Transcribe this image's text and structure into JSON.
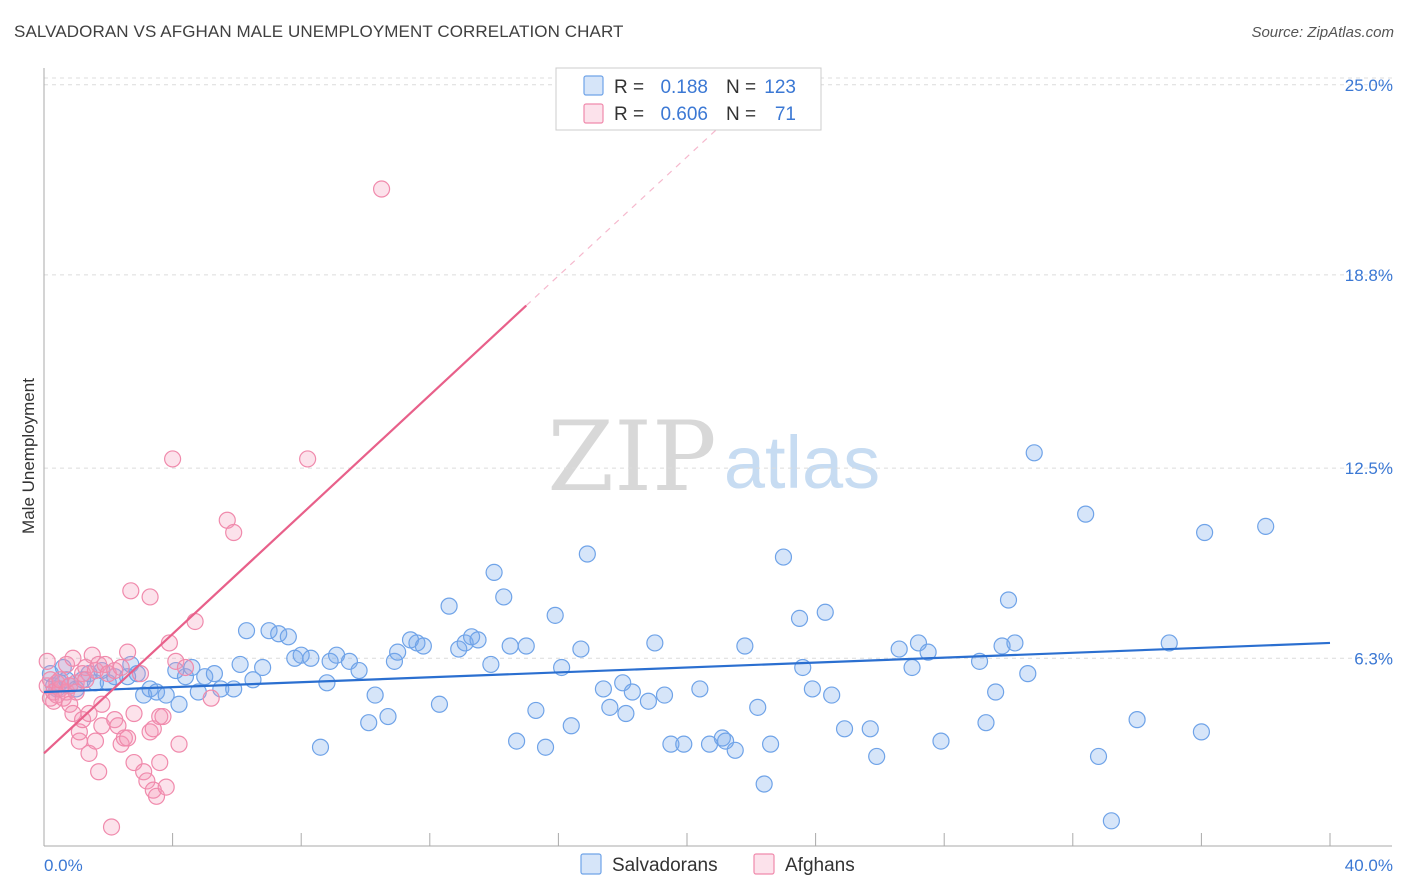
{
  "title": "SALVADORAN VS AFGHAN MALE UNEMPLOYMENT CORRELATION CHART",
  "source": "Source: ZipAtlas.com",
  "watermark": {
    "zip": "ZIP",
    "atlas": "atlas"
  },
  "colors": {
    "blue": "#6fa3e8",
    "blue_fill": "rgba(120,170,235,0.30)",
    "blue_line": "#2b6fd0",
    "pink": "#f08aac",
    "pink_fill": "rgba(244,150,182,0.28)",
    "pink_line": "#e8608a",
    "tick_text": "#3b78d4",
    "grid": "#dcdcdc"
  },
  "legend_top": {
    "rows": [
      {
        "r_label": "R =",
        "r_value": "0.188",
        "n_label": "N =",
        "n_value": "123",
        "series": "blue"
      },
      {
        "r_label": "R =",
        "r_value": "0.606",
        "n_label": "N =",
        "n_value": "71",
        "series": "pink"
      }
    ]
  },
  "chart_data": {
    "type": "scatter",
    "title": "SALVADORAN VS AFGHAN MALE UNEMPLOYMENT CORRELATION CHART",
    "xlabel": "",
    "ylabel": "Male Unemployment",
    "xlim": [
      0,
      40
    ],
    "ylim": [
      0,
      26
    ],
    "x_tick_labels": [
      "0.0%",
      "40.0%"
    ],
    "y_ticks": [
      6.3,
      12.5,
      18.8,
      25.0
    ],
    "y_tick_labels": [
      "6.3%",
      "12.5%",
      "18.8%",
      "25.0%"
    ],
    "grid": true,
    "legend": [
      "Salvadorans",
      "Afghans"
    ],
    "series": [
      {
        "name": "Salvadorans",
        "color": "blue",
        "regression": {
          "x": [
            0,
            40
          ],
          "y": [
            5.2,
            6.8
          ]
        },
        "points": [
          [
            0.2,
            5.8
          ],
          [
            0.3,
            5.4
          ],
          [
            0.4,
            5.3
          ],
          [
            0.5,
            5.5
          ],
          [
            0.6,
            6.0
          ],
          [
            0.7,
            5.6
          ],
          [
            0.8,
            5.4
          ],
          [
            1.0,
            5.3
          ],
          [
            1.2,
            5.6
          ],
          [
            1.4,
            5.8
          ],
          [
            1.6,
            5.5
          ],
          [
            1.8,
            5.9
          ],
          [
            2.0,
            5.5
          ],
          [
            2.2,
            5.7
          ],
          [
            2.6,
            5.7
          ],
          [
            2.7,
            6.1
          ],
          [
            2.9,
            5.8
          ],
          [
            3.1,
            5.1
          ],
          [
            3.3,
            5.3
          ],
          [
            3.5,
            5.2
          ],
          [
            3.8,
            5.1
          ],
          [
            4.1,
            5.9
          ],
          [
            4.2,
            4.8
          ],
          [
            4.4,
            5.7
          ],
          [
            4.6,
            6.0
          ],
          [
            4.8,
            5.2
          ],
          [
            5.0,
            5.7
          ],
          [
            5.3,
            5.8
          ],
          [
            5.5,
            5.3
          ],
          [
            5.9,
            5.3
          ],
          [
            6.1,
            6.1
          ],
          [
            6.3,
            7.2
          ],
          [
            6.5,
            5.6
          ],
          [
            6.8,
            6.0
          ],
          [
            7.0,
            7.2
          ],
          [
            7.3,
            7.1
          ],
          [
            7.6,
            7.0
          ],
          [
            7.8,
            6.3
          ],
          [
            8.0,
            6.4
          ],
          [
            8.3,
            6.3
          ],
          [
            8.6,
            3.4
          ],
          [
            8.8,
            5.5
          ],
          [
            8.9,
            6.2
          ],
          [
            9.1,
            6.4
          ],
          [
            9.5,
            6.2
          ],
          [
            9.8,
            5.9
          ],
          [
            10.1,
            4.2
          ],
          [
            10.3,
            5.1
          ],
          [
            10.7,
            4.4
          ],
          [
            10.9,
            6.2
          ],
          [
            11.0,
            6.5
          ],
          [
            11.4,
            6.9
          ],
          [
            11.6,
            6.8
          ],
          [
            11.8,
            6.7
          ],
          [
            12.3,
            4.8
          ],
          [
            12.6,
            8.0
          ],
          [
            12.9,
            6.6
          ],
          [
            13.1,
            6.8
          ],
          [
            13.3,
            7.0
          ],
          [
            13.5,
            6.9
          ],
          [
            13.9,
            6.1
          ],
          [
            14.0,
            9.1
          ],
          [
            14.3,
            8.3
          ],
          [
            14.5,
            6.7
          ],
          [
            14.7,
            3.6
          ],
          [
            15.0,
            6.7
          ],
          [
            15.3,
            4.6
          ],
          [
            15.6,
            3.4
          ],
          [
            15.9,
            7.7
          ],
          [
            16.1,
            6.0
          ],
          [
            16.4,
            4.1
          ],
          [
            16.7,
            6.6
          ],
          [
            16.9,
            9.7
          ],
          [
            17.4,
            5.3
          ],
          [
            17.6,
            4.7
          ],
          [
            18.0,
            5.5
          ],
          [
            18.1,
            4.5
          ],
          [
            18.3,
            5.2
          ],
          [
            18.8,
            4.9
          ],
          [
            19.0,
            6.8
          ],
          [
            19.3,
            5.1
          ],
          [
            19.5,
            3.5
          ],
          [
            19.9,
            3.5
          ],
          [
            20.4,
            5.3
          ],
          [
            20.7,
            3.5
          ],
          [
            21.1,
            3.7
          ],
          [
            21.2,
            3.6
          ],
          [
            21.5,
            3.3
          ],
          [
            21.8,
            6.7
          ],
          [
            22.2,
            4.7
          ],
          [
            22.4,
            2.2
          ],
          [
            22.6,
            3.5
          ],
          [
            23.0,
            9.6
          ],
          [
            23.5,
            7.6
          ],
          [
            23.6,
            6.0
          ],
          [
            23.9,
            5.3
          ],
          [
            24.3,
            7.8
          ],
          [
            24.5,
            5.1
          ],
          [
            24.9,
            4.0
          ],
          [
            25.7,
            4.0
          ],
          [
            25.9,
            3.1
          ],
          [
            26.6,
            6.6
          ],
          [
            27.0,
            6.0
          ],
          [
            27.2,
            6.8
          ],
          [
            27.5,
            6.5
          ],
          [
            27.9,
            3.6
          ],
          [
            29.1,
            6.2
          ],
          [
            29.3,
            4.2
          ],
          [
            29.6,
            5.2
          ],
          [
            29.8,
            6.7
          ],
          [
            30.0,
            8.2
          ],
          [
            30.2,
            6.8
          ],
          [
            30.6,
            5.8
          ],
          [
            30.8,
            13.0
          ],
          [
            32.4,
            11.0
          ],
          [
            32.8,
            3.1
          ],
          [
            33.2,
            1.0
          ],
          [
            34.0,
            4.3
          ],
          [
            35.0,
            6.8
          ],
          [
            36.0,
            3.9
          ],
          [
            36.1,
            10.4
          ],
          [
            38.0,
            10.6
          ]
        ]
      },
      {
        "name": "Afghans",
        "color": "pink",
        "regression": {
          "x": [
            0,
            15
          ],
          "y": [
            3.2,
            17.8
          ]
        },
        "regression_dashed": {
          "x": [
            15,
            21.6
          ],
          "y": [
            17.8,
            24.2
          ]
        },
        "points": [
          [
            0.1,
            6.2
          ],
          [
            0.1,
            5.4
          ],
          [
            0.2,
            5.0
          ],
          [
            0.2,
            5.6
          ],
          [
            0.3,
            5.2
          ],
          [
            0.3,
            4.9
          ],
          [
            0.4,
            5.5
          ],
          [
            0.4,
            5.1
          ],
          [
            0.5,
            5.3
          ],
          [
            0.5,
            5.6
          ],
          [
            0.6,
            5.0
          ],
          [
            0.7,
            5.2
          ],
          [
            0.7,
            6.1
          ],
          [
            0.8,
            4.8
          ],
          [
            0.8,
            5.4
          ],
          [
            0.9,
            4.5
          ],
          [
            0.9,
            6.3
          ],
          [
            1.0,
            5.5
          ],
          [
            1.0,
            5.2
          ],
          [
            1.1,
            3.6
          ],
          [
            1.1,
            3.9
          ],
          [
            1.2,
            5.8
          ],
          [
            1.2,
            4.3
          ],
          [
            1.3,
            6.0
          ],
          [
            1.3,
            5.6
          ],
          [
            1.4,
            4.5
          ],
          [
            1.4,
            3.2
          ],
          [
            1.5,
            6.4
          ],
          [
            1.6,
            5.9
          ],
          [
            1.6,
            3.6
          ],
          [
            1.7,
            2.6
          ],
          [
            1.7,
            6.1
          ],
          [
            1.8,
            4.1
          ],
          [
            1.8,
            4.8
          ],
          [
            1.9,
            6.1
          ],
          [
            2.0,
            5.8
          ],
          [
            2.1,
            0.8
          ],
          [
            2.2,
            5.9
          ],
          [
            2.2,
            4.3
          ],
          [
            2.3,
            4.1
          ],
          [
            2.4,
            3.5
          ],
          [
            2.4,
            6.0
          ],
          [
            2.5,
            3.7
          ],
          [
            2.6,
            3.7
          ],
          [
            2.6,
            6.5
          ],
          [
            2.7,
            8.5
          ],
          [
            2.8,
            4.5
          ],
          [
            2.8,
            2.9
          ],
          [
            3.0,
            5.8
          ],
          [
            3.1,
            2.6
          ],
          [
            3.2,
            2.3
          ],
          [
            3.3,
            3.9
          ],
          [
            3.3,
            8.3
          ],
          [
            3.4,
            2.0
          ],
          [
            3.4,
            4.0
          ],
          [
            3.5,
            1.8
          ],
          [
            3.6,
            4.4
          ],
          [
            3.6,
            2.9
          ],
          [
            3.7,
            4.4
          ],
          [
            3.8,
            2.1
          ],
          [
            3.9,
            6.8
          ],
          [
            4.0,
            12.8
          ],
          [
            4.1,
            6.2
          ],
          [
            4.2,
            3.5
          ],
          [
            4.4,
            6.0
          ],
          [
            4.7,
            7.5
          ],
          [
            5.2,
            5.0
          ],
          [
            5.7,
            10.8
          ],
          [
            5.9,
            10.4
          ],
          [
            8.2,
            12.8
          ],
          [
            10.5,
            21.6
          ]
        ]
      }
    ]
  },
  "legend_bottom": [
    {
      "label": "Salvadorans",
      "series": "blue"
    },
    {
      "label": "Afghans",
      "series": "pink"
    }
  ]
}
